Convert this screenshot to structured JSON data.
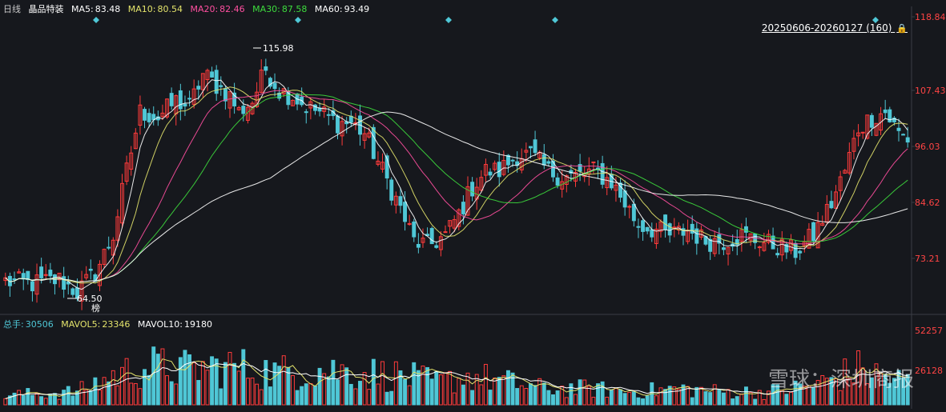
{
  "header": {
    "period": "日线",
    "stock_name": "晶品特装",
    "ma5_label": "MA5:",
    "ma5": "83.48",
    "ma10_label": "MA10:",
    "ma10": "80.54",
    "ma20_label": "MA20:",
    "ma20": "82.46",
    "ma30_label": "MA30:",
    "ma30": "87.58",
    "ma60_label": "MA60:",
    "ma60": "93.49"
  },
  "range_label": "20250606-20260127 (160)",
  "volume_header": {
    "total_label": "总手:",
    "total": "30506",
    "mavol5_label": "MAVOL5:",
    "mavol5": "23346",
    "mavol10_label": "MAVOL10:",
    "mavol10": "19180"
  },
  "watermark": "雪球：深圳商报",
  "colors": {
    "up": "#ff3b3b",
    "down": "#4fc7d6",
    "ma5": "#ffffff",
    "ma10": "#e3e36b",
    "ma20": "#ff4fa0",
    "ma30": "#3ddc3d",
    "ma60": "#ffffff",
    "axis_text": "#ff4444",
    "background": "#16181d",
    "grid": "#2a2d35"
  },
  "chart_data": {
    "type": "candlestick",
    "price_axis_ticks": [
      "118.84",
      "107.43",
      "96.03",
      "84.62",
      "73.21"
    ],
    "volume_axis_ticks": [
      "52257",
      "26128"
    ],
    "ylim": [
      64.5,
      118.84
    ],
    "annotations": {
      "high": "115.98",
      "low": "64.50",
      "marker": "榜"
    },
    "candles": [],
    "keypoints": [
      [
        0,
        69.5
      ],
      [
        6,
        69.0
      ],
      [
        12,
        69.8
      ],
      [
        16,
        67.5
      ],
      [
        20,
        71
      ],
      [
        24,
        78
      ],
      [
        27,
        90
      ],
      [
        30,
        101
      ],
      [
        34,
        100
      ],
      [
        38,
        103
      ],
      [
        41,
        102
      ],
      [
        44,
        108
      ],
      [
        47,
        106
      ],
      [
        50,
        104
      ],
      [
        52,
        101
      ],
      [
        55,
        103
      ],
      [
        58,
        109
      ],
      [
        61,
        105
      ],
      [
        64,
        104
      ],
      [
        67,
        102
      ],
      [
        70,
        101
      ],
      [
        74,
        99
      ],
      [
        77,
        99
      ],
      [
        80,
        97
      ],
      [
        84,
        90
      ],
      [
        88,
        83
      ],
      [
        91,
        77
      ],
      [
        94,
        76
      ],
      [
        98,
        78
      ],
      [
        101,
        82
      ],
      [
        104,
        87
      ],
      [
        107,
        90
      ],
      [
        110,
        90
      ],
      [
        114,
        93
      ],
      [
        117,
        93
      ],
      [
        121,
        90
      ],
      [
        124,
        89
      ],
      [
        127,
        89
      ],
      [
        131,
        90
      ],
      [
        135,
        88
      ],
      [
        138,
        84
      ],
      [
        141,
        80
      ],
      [
        145,
        79
      ],
      [
        148,
        78
      ],
      [
        152,
        79
      ],
      [
        156,
        77
      ],
      [
        160,
        77
      ],
      [
        164,
        78
      ],
      [
        168,
        77
      ],
      [
        172,
        76
      ],
      [
        176,
        75
      ],
      [
        180,
        78
      ],
      [
        184,
        84
      ],
      [
        187,
        90
      ],
      [
        190,
        98
      ],
      [
        193,
        100
      ],
      [
        196,
        101
      ],
      [
        199,
        97
      ],
      [
        201,
        96
      ]
    ],
    "volume_keypoints": [
      [
        0,
        0.15
      ],
      [
        16,
        0.2
      ],
      [
        24,
        0.45
      ],
      [
        32,
        0.6
      ],
      [
        40,
        0.55
      ],
      [
        50,
        0.6
      ],
      [
        60,
        0.5
      ],
      [
        70,
        0.55
      ],
      [
        80,
        0.5
      ],
      [
        88,
        0.45
      ],
      [
        96,
        0.35
      ],
      [
        104,
        0.45
      ],
      [
        112,
        0.35
      ],
      [
        120,
        0.25
      ],
      [
        130,
        0.25
      ],
      [
        140,
        0.2
      ],
      [
        150,
        0.25
      ],
      [
        160,
        0.2
      ],
      [
        170,
        0.2
      ],
      [
        180,
        0.3
      ],
      [
        190,
        0.55
      ],
      [
        201,
        0.35
      ]
    ]
  }
}
